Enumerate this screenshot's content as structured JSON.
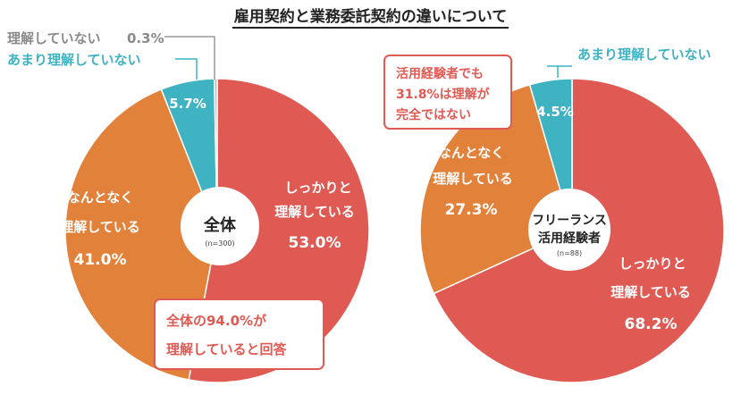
{
  "title": "雇用契約と業務委託契約の違いについて",
  "colors": {
    "understand": "#e05a54",
    "somewhat": "#e2813a",
    "not_much": "#3fb3c2",
    "not_at_all": "#b9b9b9",
    "text_white": "#ffffff",
    "text_grey": "#8a8a8a",
    "text_teal": "#3fb3c2"
  },
  "chart_data": [
    {
      "type": "pie",
      "title": "全体",
      "subtitle": "(n=300)",
      "slices": [
        {
          "label": "しっかりと理解している",
          "value": 53.0,
          "display": "53.0%",
          "color": "#e05a54"
        },
        {
          "label": "なんとなく理解している",
          "value": 41.0,
          "display": "41.0%",
          "color": "#e2813a"
        },
        {
          "label": "あまり理解していない",
          "value": 5.7,
          "display": "5.7%",
          "color": "#3fb3c2"
        },
        {
          "label": "理解していない",
          "value": 0.3,
          "display": "0.3%",
          "color": "#b9b9b9"
        }
      ],
      "callout": [
        "全体の94.0%が",
        "理解していると回答"
      ]
    },
    {
      "type": "pie",
      "title": "フリーランス活用経験者",
      "subtitle": "(n=88)",
      "slices": [
        {
          "label": "しっかりと理解している",
          "value": 68.2,
          "display": "68.2%",
          "color": "#e05a54"
        },
        {
          "label": "なんとなく理解している",
          "value": 27.3,
          "display": "27.3%",
          "color": "#e2813a"
        },
        {
          "label": "あまり理解していない",
          "value": 4.5,
          "display": "4.5%",
          "color": "#3fb3c2"
        }
      ],
      "callout": [
        "活用経験者でも",
        "31.8%は理解が",
        "完全ではない"
      ]
    }
  ],
  "labels": {
    "left": {
      "understand": [
        "しっかりと",
        "理解している"
      ],
      "somewhat": [
        "なんとなく",
        "理解している"
      ],
      "not_much_legend": "あまり理解していない",
      "not_at_all_legend": "理解していない",
      "center_title": "全体",
      "center_sub": "(n=300)"
    },
    "right": {
      "understand": [
        "しっかりと",
        "理解している"
      ],
      "somewhat": [
        "なんとなく",
        "理解している"
      ],
      "not_much_legend": "あまり理解していない",
      "center_title": [
        "フリーランス",
        "活用経験者"
      ],
      "center_sub": "(n=88)"
    }
  }
}
